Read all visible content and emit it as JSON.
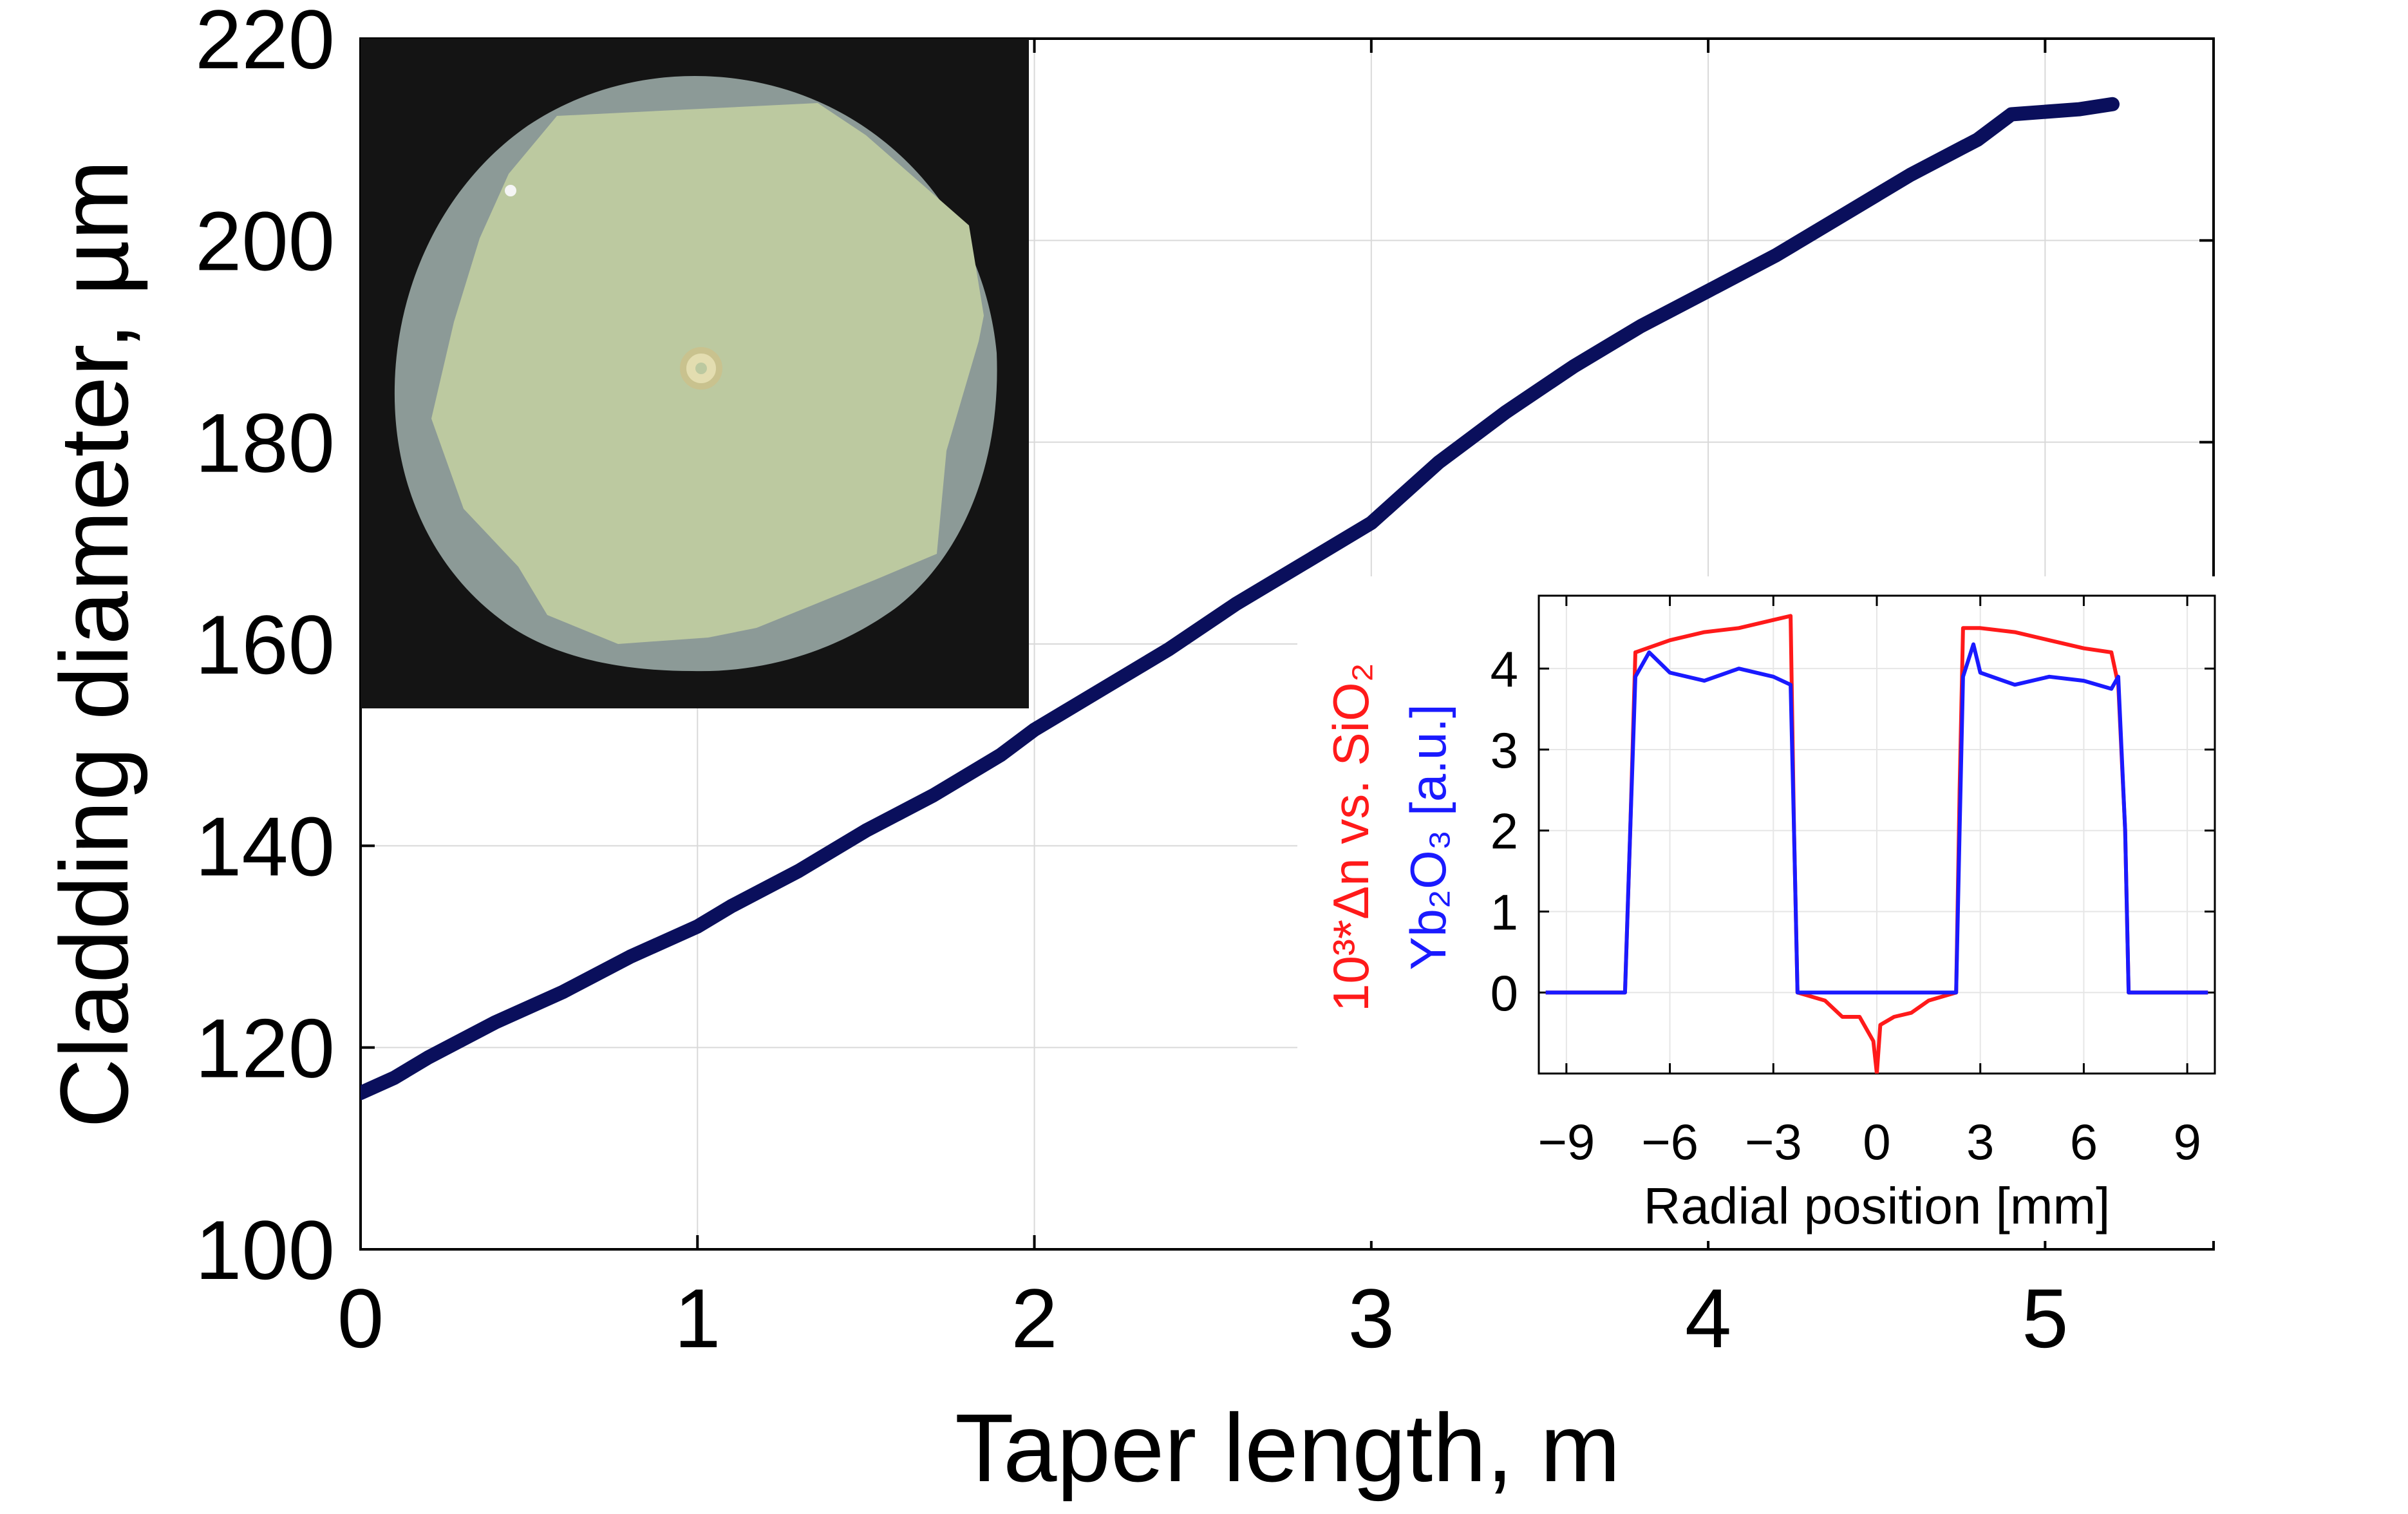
{
  "colors": {
    "main_line": "#0a0f5c",
    "grid": "#d9d9d9",
    "axis": "#000000",
    "inset_red": "#ff1a1a",
    "inset_blue": "#1a1aff",
    "micro_background": "#141414",
    "micro_cladding": "#8c9a97",
    "micro_core": "#bcc9a0"
  },
  "chart_data": [
    {
      "type": "line",
      "title": "",
      "xlabel": "Taper length, m",
      "ylabel": "Cladding diameter, µm",
      "xlim": [
        0,
        5.5
      ],
      "ylim": [
        100,
        220
      ],
      "x_ticks": [
        0,
        1,
        2,
        3,
        4,
        5
      ],
      "y_ticks": [
        100,
        120,
        140,
        160,
        180,
        200,
        220
      ],
      "x_tick_labels": [
        "0",
        "1",
        "2",
        "3",
        "4",
        "5"
      ],
      "y_tick_labels": [
        "100",
        "120",
        "140",
        "160",
        "180",
        "200",
        "220"
      ],
      "grid": true,
      "series": [
        {
          "x": [
            0,
            0.1,
            0.2,
            0.4,
            0.6,
            0.8,
            1.0,
            1.1,
            1.3,
            1.5,
            1.7,
            1.9,
            2.0,
            2.2,
            2.4,
            2.6,
            2.8,
            3.0,
            3.2,
            3.4,
            3.6,
            3.8,
            4.0,
            4.2,
            4.4,
            4.6,
            4.8,
            4.9,
            5.1,
            5.2
          ],
          "y": [
            115.5,
            117,
            119,
            122.5,
            125.5,
            129,
            132,
            134,
            137.5,
            141.5,
            145,
            149,
            151.5,
            155.5,
            159.5,
            164,
            168,
            172,
            178,
            183,
            187.5,
            191.5,
            195,
            198.5,
            202.5,
            206.5,
            210,
            212.5,
            213,
            213.5
          ]
        }
      ]
    },
    {
      "type": "line",
      "title": "",
      "xlabel": "Radial position  [mm]",
      "ylabel_red": "10³*Δn vs. SiO₂",
      "ylabel_blue": "Yb₂O₃ [a.u.]",
      "xlim": [
        -9.8,
        9.8
      ],
      "ylim": [
        -1,
        4.9
      ],
      "x_ticks": [
        -9,
        -6,
        -3,
        0,
        3,
        6,
        9
      ],
      "y_ticks": [
        0,
        1,
        2,
        3,
        4
      ],
      "x_tick_labels": [
        "−9",
        "−6",
        "−3",
        "0",
        "3",
        "6",
        "9"
      ],
      "y_tick_labels": [
        "0",
        "1",
        "2",
        "3",
        "4"
      ],
      "grid": true,
      "series": [
        {
          "color": "red",
          "x": [
            -9.6,
            -7.3,
            -7.15,
            -7.0,
            -6.0,
            -5.0,
            -4.0,
            -3.0,
            -2.5,
            -2.4,
            -2.3,
            -1.5,
            -1.0,
            -0.5,
            -0.1,
            0.0,
            0.1,
            0.5,
            1.0,
            1.5,
            2.3,
            2.4,
            2.5,
            3.0,
            4.0,
            5.0,
            6.0,
            6.8,
            7.0,
            7.2,
            7.3,
            9.6
          ],
          "y": [
            0,
            0,
            2.0,
            4.2,
            4.35,
            4.45,
            4.5,
            4.6,
            4.65,
            2.0,
            0,
            -0.1,
            -0.3,
            -0.3,
            -0.6,
            -1.0,
            -0.4,
            -0.3,
            -0.25,
            -0.1,
            0,
            2.5,
            4.5,
            4.5,
            4.45,
            4.35,
            4.25,
            4.2,
            3.8,
            2.0,
            0,
            0
          ]
        },
        {
          "color": "blue",
          "x": [
            -9.6,
            -7.3,
            -7.15,
            -7.0,
            -6.6,
            -6.0,
            -5.0,
            -4.0,
            -3.0,
            -2.5,
            -2.4,
            -2.3,
            0.0,
            2.3,
            2.4,
            2.5,
            2.8,
            3.0,
            4.0,
            5.0,
            6.0,
            6.8,
            7.0,
            7.2,
            7.3,
            9.6
          ],
          "y": [
            0,
            0,
            2.0,
            3.9,
            4.2,
            3.95,
            3.85,
            4.0,
            3.9,
            3.8,
            2.0,
            0,
            0,
            0,
            2.0,
            3.9,
            4.3,
            3.95,
            3.8,
            3.9,
            3.85,
            3.75,
            3.9,
            2.0,
            0,
            0
          ]
        }
      ]
    }
  ]
}
